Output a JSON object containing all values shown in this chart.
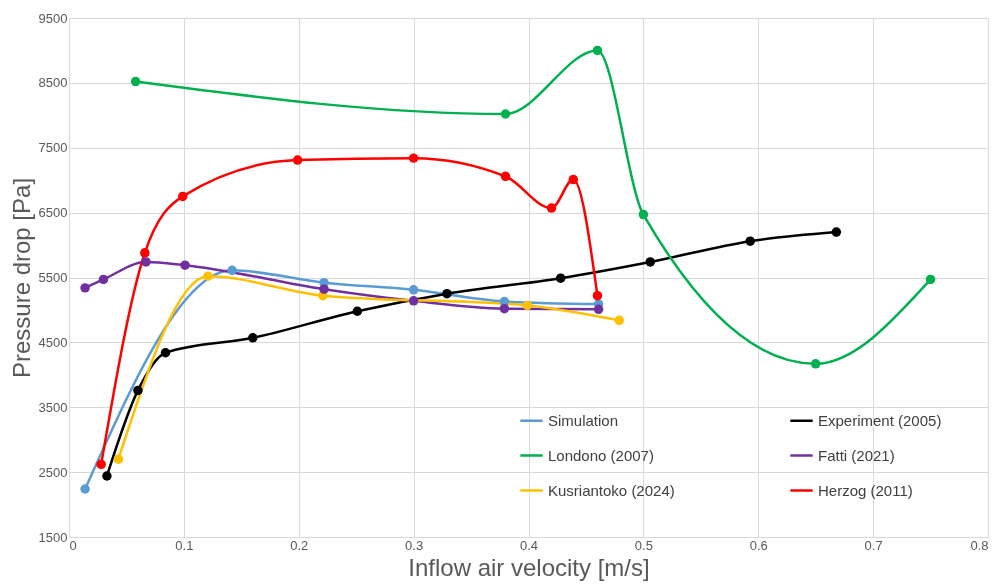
{
  "chart_data": {
    "type": "line",
    "xlabel": "Inflow air velocity [m/s]",
    "ylabel": "Pressure drop [Pa]",
    "xlim": [
      0,
      0.8
    ],
    "xticks": [
      0,
      0.1,
      0.2,
      0.3,
      0.4,
      0.5,
      0.6,
      0.7,
      0.8
    ],
    "ylim": [
      1500,
      9500
    ],
    "yticks": [
      1500,
      2500,
      3500,
      4500,
      5500,
      6500,
      7500,
      8500,
      9500
    ],
    "grid": true,
    "legend": "bottom right",
    "marker": "circle",
    "line_style": "solid",
    "series": [
      {
        "name": "Simulation",
        "color": "#5b9bd5",
        "x": [
          0.014,
          0.142,
          0.222,
          0.3,
          0.379,
          0.461
        ],
        "values": [
          2240,
          5610,
          5420,
          5310,
          5130,
          5090
        ]
      },
      {
        "name": "Experiment (2005)",
        "color": "#000000",
        "x": [
          0.033,
          0.06,
          0.084,
          0.16,
          0.251,
          0.329,
          0.428,
          0.506,
          0.593,
          0.668
        ],
        "values": [
          2440,
          3760,
          4340,
          4570,
          4980,
          5250,
          5490,
          5740,
          6060,
          6200
        ]
      },
      {
        "name": "Londono (2007)",
        "color": "#00b050",
        "x": [
          0.058,
          0.38,
          0.46,
          0.5,
          0.65,
          0.75
        ],
        "values": [
          8520,
          8020,
          9000,
          6470,
          4170,
          5470
        ]
      },
      {
        "name": "Fatti (2021)",
        "color": "#7030a0",
        "x": [
          0.014,
          0.03,
          0.067,
          0.101,
          0.222,
          0.3,
          0.379,
          0.461
        ],
        "values": [
          5340,
          5470,
          5740,
          5690,
          5320,
          5140,
          5020,
          5010
        ]
      },
      {
        "name": "Kusriantoko (2024)",
        "color": "#ffc000",
        "x": [
          0.043,
          0.121,
          0.221,
          0.399,
          0.479
        ],
        "values": [
          2700,
          5520,
          5220,
          5070,
          4840
        ]
      },
      {
        "name": "Herzog (2011)",
        "color": "#ff0000",
        "x": [
          0.028,
          0.066,
          0.099,
          0.199,
          0.3,
          0.38,
          0.42,
          0.439,
          0.46
        ],
        "values": [
          2620,
          5880,
          6750,
          7310,
          7340,
          7060,
          6570,
          7010,
          5220
        ]
      }
    ]
  }
}
